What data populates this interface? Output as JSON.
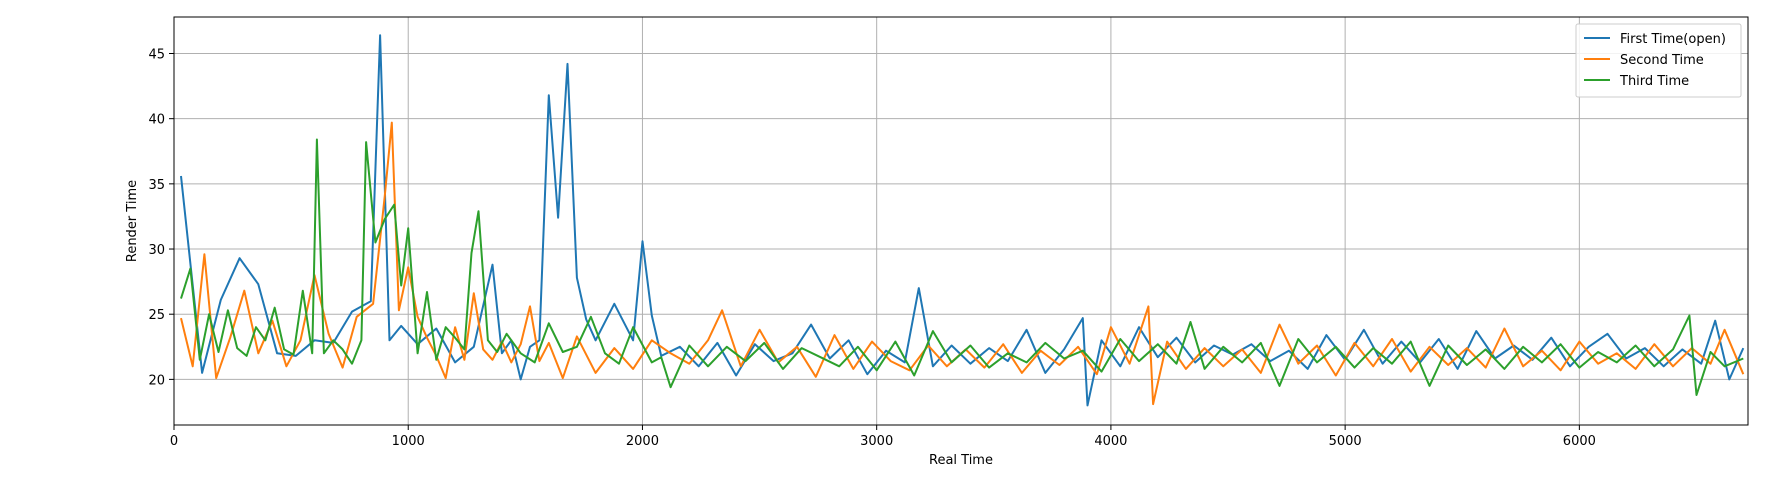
{
  "chart_data": {
    "type": "line",
    "title": "",
    "xlabel": "Real Time",
    "ylabel": "Render Time",
    "xlim": [
      0,
      6720
    ],
    "ylim": [
      16.5,
      47.8
    ],
    "xticks": [
      0,
      1000,
      2000,
      3000,
      4000,
      5000,
      6000
    ],
    "yticks": [
      20,
      25,
      30,
      35,
      40,
      45
    ],
    "grid": true,
    "legend_position": "top-right",
    "series": [
      {
        "name": "First Time(open)",
        "color": "#1f77b4",
        "x": [
          30,
          120,
          200,
          280,
          360,
          440,
          520,
          600,
          680,
          760,
          840,
          880,
          920,
          970,
          1040,
          1120,
          1200,
          1280,
          1360,
          1400,
          1440,
          1480,
          1520,
          1560,
          1600,
          1640,
          1680,
          1720,
          1760,
          1800,
          1880,
          1960,
          2000,
          2040,
          2080,
          2160,
          2240,
          2320,
          2400,
          2480,
          2560,
          2640,
          2720,
          2800,
          2880,
          2960,
          3040,
          3120,
          3180,
          3240,
          3320,
          3400,
          3480,
          3560,
          3640,
          3720,
          3800,
          3880,
          3900,
          3960,
          4040,
          4120,
          4200,
          4280,
          4360,
          4440,
          4520,
          4600,
          4680,
          4760,
          4840,
          4920,
          5000,
          5080,
          5160,
          5240,
          5320,
          5400,
          5480,
          5560,
          5640,
          5720,
          5800,
          5880,
          5960,
          6040,
          6120,
          6200,
          6280,
          6360,
          6440,
          6520,
          6580,
          6640,
          6700
        ],
        "y": [
          35.6,
          20.5,
          26.1,
          29.3,
          27.3,
          22.0,
          21.8,
          23.0,
          22.8,
          25.2,
          26.0,
          46.4,
          23.0,
          24.1,
          22.7,
          23.9,
          21.3,
          22.5,
          28.8,
          22.0,
          23.0,
          20.0,
          22.5,
          23.0,
          41.8,
          32.4,
          44.2,
          27.8,
          24.6,
          23.0,
          25.8,
          23.0,
          30.6,
          24.9,
          21.8,
          22.5,
          21.0,
          22.8,
          20.3,
          22.7,
          21.4,
          22.0,
          24.2,
          21.6,
          23.0,
          20.4,
          22.2,
          21.3,
          27.0,
          21.0,
          22.6,
          21.2,
          22.4,
          21.4,
          23.8,
          20.5,
          22.3,
          24.7,
          18.0,
          23.0,
          21.0,
          24.0,
          21.7,
          23.2,
          21.3,
          22.6,
          21.9,
          22.7,
          21.4,
          22.2,
          20.8,
          23.4,
          21.5,
          23.8,
          21.2,
          22.9,
          21.3,
          23.1,
          20.8,
          23.7,
          21.6,
          22.6,
          21.5,
          23.2,
          21.0,
          22.5,
          23.5,
          21.6,
          22.4,
          21.0,
          22.3,
          21.2,
          24.5,
          20.0,
          22.4
        ]
      },
      {
        "name": "Second Time",
        "color": "#ff7f0e",
        "x": [
          30,
          80,
          130,
          180,
          240,
          300,
          360,
          420,
          480,
          540,
          600,
          660,
          720,
          780,
          850,
          900,
          930,
          960,
          1000,
          1040,
          1080,
          1120,
          1160,
          1200,
          1240,
          1280,
          1320,
          1360,
          1400,
          1440,
          1480,
          1520,
          1560,
          1600,
          1660,
          1720,
          1800,
          1880,
          1960,
          2040,
          2120,
          2200,
          2280,
          2340,
          2420,
          2500,
          2580,
          2660,
          2740,
          2820,
          2900,
          2980,
          3060,
          3140,
          3220,
          3300,
          3380,
          3460,
          3540,
          3620,
          3700,
          3780,
          3860,
          3940,
          4000,
          4080,
          4160,
          4180,
          4240,
          4320,
          4400,
          4480,
          4560,
          4640,
          4720,
          4800,
          4880,
          4960,
          5040,
          5120,
          5200,
          5280,
          5360,
          5440,
          5520,
          5600,
          5680,
          5760,
          5840,
          5920,
          6000,
          6080,
          6160,
          6240,
          6320,
          6400,
          6480,
          6560,
          6620,
          6700
        ],
        "y": [
          24.7,
          21.0,
          29.6,
          20.1,
          23.2,
          26.8,
          22.0,
          24.5,
          21.0,
          23.0,
          28.0,
          23.5,
          20.9,
          24.8,
          25.8,
          34.1,
          39.7,
          25.3,
          28.6,
          24.8,
          23.2,
          21.8,
          20.1,
          24.0,
          21.5,
          26.6,
          22.3,
          21.5,
          22.9,
          21.3,
          22.7,
          25.6,
          21.4,
          22.8,
          20.1,
          23.3,
          20.5,
          22.4,
          20.8,
          23.0,
          22.0,
          21.2,
          23.0,
          25.3,
          21.0,
          23.8,
          21.3,
          22.5,
          20.2,
          23.4,
          20.8,
          22.9,
          21.4,
          20.7,
          22.6,
          21.0,
          22.3,
          20.9,
          22.7,
          20.5,
          22.2,
          21.1,
          22.5,
          20.4,
          24.0,
          21.2,
          25.6,
          18.1,
          22.9,
          20.8,
          22.4,
          21.0,
          22.3,
          20.5,
          24.2,
          21.2,
          22.6,
          20.3,
          22.8,
          21.0,
          23.1,
          20.6,
          22.5,
          21.1,
          22.4,
          20.9,
          23.9,
          21.0,
          22.2,
          20.7,
          22.9,
          21.2,
          22.0,
          20.8,
          22.7,
          21.0,
          22.4,
          21.2,
          23.8,
          20.4
        ]
      },
      {
        "name": "Third Time",
        "color": "#2ca02c",
        "x": [
          30,
          70,
          110,
          150,
          190,
          230,
          270,
          310,
          350,
          390,
          430,
          470,
          510,
          550,
          590,
          610,
          640,
          680,
          720,
          760,
          800,
          820,
          860,
          900,
          940,
          970,
          1000,
          1040,
          1080,
          1120,
          1160,
          1200,
          1240,
          1270,
          1300,
          1340,
          1380,
          1420,
          1480,
          1540,
          1600,
          1660,
          1720,
          1780,
          1840,
          1900,
          1960,
          2040,
          2080,
          2120,
          2200,
          2280,
          2360,
          2440,
          2520,
          2600,
          2680,
          2760,
          2840,
          2920,
          3000,
          3080,
          3160,
          3240,
          3320,
          3400,
          3480,
          3560,
          3640,
          3720,
          3800,
          3880,
          3960,
          4040,
          4120,
          4200,
          4280,
          4340,
          4400,
          4480,
          4560,
          4640,
          4720,
          4800,
          4880,
          4960,
          5040,
          5120,
          5200,
          5280,
          5360,
          5440,
          5520,
          5600,
          5680,
          5760,
          5840,
          5920,
          6000,
          6080,
          6160,
          6240,
          6320,
          6400,
          6470,
          6500,
          6560,
          6620,
          6700
        ],
        "y": [
          26.2,
          28.5,
          21.5,
          25.0,
          22.1,
          25.3,
          22.4,
          21.8,
          24.0,
          23.0,
          25.5,
          22.3,
          21.9,
          26.8,
          22.0,
          38.4,
          22.0,
          23.0,
          22.3,
          21.2,
          23.0,
          38.2,
          30.5,
          32.3,
          33.4,
          27.2,
          31.6,
          22.0,
          26.7,
          21.5,
          24.0,
          23.2,
          22.3,
          29.7,
          32.9,
          23.0,
          22.1,
          23.5,
          22.0,
          21.3,
          24.3,
          22.1,
          22.5,
          24.8,
          22.0,
          21.2,
          24.0,
          21.3,
          21.7,
          19.4,
          22.6,
          21.0,
          22.5,
          21.4,
          22.8,
          20.8,
          22.4,
          21.7,
          21.0,
          22.5,
          20.7,
          22.9,
          20.3,
          23.7,
          21.3,
          22.6,
          20.9,
          22.0,
          21.3,
          22.8,
          21.6,
          22.2,
          20.6,
          23.1,
          21.4,
          22.7,
          21.2,
          24.4,
          20.8,
          22.5,
          21.3,
          22.8,
          19.5,
          23.1,
          21.3,
          22.5,
          20.9,
          22.4,
          21.2,
          22.9,
          19.5,
          22.6,
          21.1,
          22.3,
          20.8,
          22.5,
          21.3,
          22.7,
          20.9,
          22.1,
          21.3,
          22.6,
          21.0,
          22.3,
          24.9,
          18.8,
          22.1,
          21.0,
          21.6
        ]
      }
    ]
  }
}
